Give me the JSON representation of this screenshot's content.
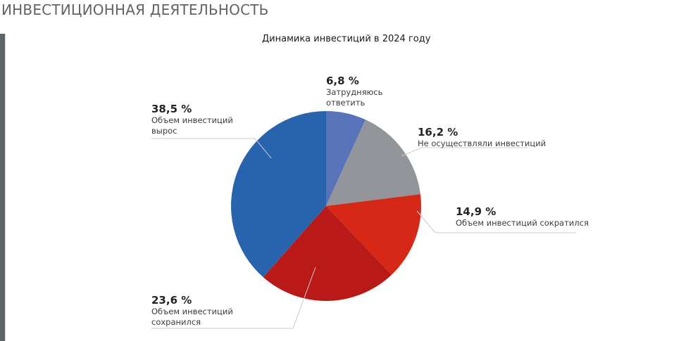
{
  "section": {
    "title": "ИНВЕСТИЦИОННАЯ ДЕЯТЕЛЬНОСТЬ"
  },
  "chart": {
    "title": "Динамика инвестиций в 2024 году",
    "slices": [
      {
        "value_label": "6,8 %",
        "line1": "Затрудняюсь",
        "line2": "ответить",
        "color": "#5873ba"
      },
      {
        "value_label": "16,2 %",
        "line1": "Не осуществляли инвестиций",
        "line2": "",
        "color": "#92959a"
      },
      {
        "value_label": "14,9 %",
        "line1": "Объем инвестиций сократился",
        "line2": "",
        "color": "#d72717"
      },
      {
        "value_label": "23,6 %",
        "line1": "Объем инвестиций",
        "line2": "сохранился",
        "color": "#b91917"
      },
      {
        "value_label": "38,5 %",
        "line1": "Объем инвестиций",
        "line2": "вырос",
        "color": "#2864ae"
      }
    ]
  },
  "chart_data": {
    "type": "pie",
    "title": "Динамика инвестиций в 2024 году",
    "categories": [
      "Затрудняюсь ответить",
      "Не осуществляли инвестиций",
      "Объем инвестиций сократился",
      "Объем инвестиций сохранился",
      "Объем инвестиций вырос"
    ],
    "values": [
      6.8,
      16.2,
      14.9,
      23.6,
      38.5
    ],
    "unit": "%",
    "colors": [
      "#5873ba",
      "#92959a",
      "#d72717",
      "#b91917",
      "#2864ae"
    ],
    "start_angle": "12 o'clock",
    "direction": "clockwise",
    "legend": "none (direct callout labels)"
  }
}
